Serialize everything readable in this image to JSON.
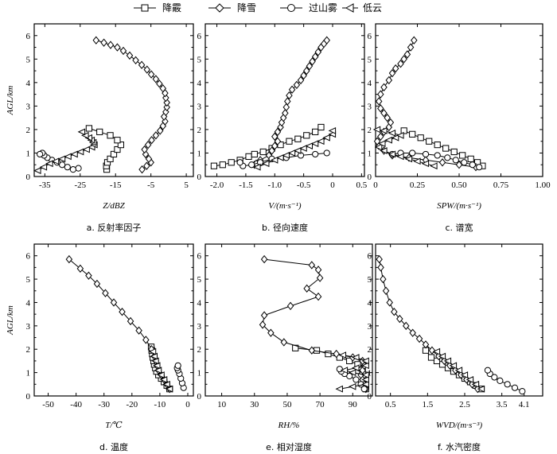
{
  "legend": [
    {
      "label": "降霰",
      "marker": "square"
    },
    {
      "label": "降雪",
      "marker": "diamond"
    },
    {
      "label": "过山雾",
      "marker": "circle"
    },
    {
      "label": "低云",
      "marker": "triangle-left"
    }
  ],
  "shared_ylabel": "AGL/km",
  "chart_data": [
    {
      "id": "a",
      "type": "line",
      "caption": "a.  反射率因子",
      "xlabel": "Z/dBZ",
      "ylabel": "AGL/km",
      "xlim": [
        -38,
        7
      ],
      "ylim": [
        0,
        6.5
      ],
      "xticks": [
        -35,
        -25,
        -15,
        -5,
        5
      ],
      "xtick_labels": [
        "-35",
        "-25",
        "-15",
        "-5",
        "5"
      ],
      "yticks": [
        0,
        1,
        2,
        3,
        4,
        5,
        6
      ],
      "series": [
        {
          "name": "降霰",
          "marker": "square",
          "x": [
            -17.5,
            -17.6,
            -17.3,
            -16.5,
            -15.5,
            -14.5,
            -13.5,
            -14.5,
            -16.5,
            -19.5,
            -22.5
          ],
          "y": [
            0.3,
            0.45,
            0.6,
            0.75,
            0.95,
            1.15,
            1.35,
            1.55,
            1.75,
            1.9,
            2.05
          ]
        },
        {
          "name": "降雪",
          "marker": "diamond",
          "x": [
            -7.5,
            -6.2,
            -5.0,
            -5.6,
            -6.5,
            -6.8,
            -5.8,
            -4.8,
            -3.6,
            -2.4,
            -1.6,
            -1.0,
            -1.3,
            -0.8,
            -0.5,
            -0.5,
            -0.8,
            -1.0,
            -1.6,
            -2.6,
            -3.6,
            -4.9,
            -6.1,
            -7.6,
            -9.3,
            -11.0,
            -12.8,
            -14.5,
            -16.4,
            -18.3,
            -20.5
          ],
          "y": [
            0.3,
            0.45,
            0.6,
            0.75,
            0.95,
            1.15,
            1.35,
            1.55,
            1.75,
            1.95,
            2.15,
            2.35,
            2.55,
            2.75,
            2.95,
            3.15,
            3.35,
            3.55,
            3.75,
            3.95,
            4.15,
            4.35,
            4.55,
            4.75,
            4.95,
            5.15,
            5.35,
            5.5,
            5.6,
            5.7,
            5.8
          ]
        },
        {
          "name": "过山雾",
          "marker": "circle",
          "x": [
            -25.5,
            -27.0,
            -28.6,
            -30.1,
            -31.5,
            -33.0,
            -34.3,
            -35.2,
            -35.7,
            -36.4
          ],
          "y": [
            0.35,
            0.3,
            0.4,
            0.5,
            0.6,
            0.7,
            0.8,
            0.9,
            1.0,
            0.95
          ]
        },
        {
          "name": "低云",
          "marker": "triangle-left",
          "x": [
            -37.0,
            -35.3,
            -33.6,
            -31.9,
            -30.1,
            -28.4,
            -26.6,
            -24.9,
            -23.2,
            -21.7,
            -21.0,
            -21.3,
            -21.8,
            -22.5,
            -23.5,
            -24.5
          ],
          "y": [
            0.25,
            0.4,
            0.55,
            0.65,
            0.75,
            0.85,
            0.95,
            1.05,
            1.15,
            1.25,
            1.35,
            1.45,
            1.55,
            1.65,
            1.75,
            1.9
          ]
        }
      ]
    },
    {
      "id": "b",
      "type": "line",
      "caption": "b.  径向速度",
      "xlabel": "V/(m·s⁻¹)",
      "ylabel": "AGL/km",
      "xlim": [
        -2.2,
        0.55
      ],
      "ylim": [
        0,
        6.5
      ],
      "xticks": [
        -2.0,
        -1.5,
        -1.0,
        -0.5,
        0.0,
        0.5
      ],
      "xtick_labels": [
        "-2.0",
        "-1.5",
        "-1.0",
        "-0.5",
        "0",
        "0.5"
      ],
      "yticks": [
        0,
        1,
        2,
        3,
        4,
        5,
        6
      ],
      "series": [
        {
          "name": "降霰",
          "marker": "square",
          "x": [
            -2.05,
            -1.9,
            -1.75,
            -1.6,
            -1.45,
            -1.35,
            -1.2,
            -1.05,
            -0.9,
            -0.75,
            -0.6,
            -0.45,
            -0.3,
            -0.2
          ],
          "y": [
            0.45,
            0.5,
            0.6,
            0.7,
            0.85,
            0.95,
            1.05,
            1.2,
            1.35,
            1.5,
            1.6,
            1.75,
            1.9,
            2.1
          ]
        },
        {
          "name": "降雪",
          "marker": "diamond",
          "x": [
            -1.35,
            -1.32,
            -1.25,
            -1.1,
            -1.05,
            -1.0,
            -0.95,
            -1.0,
            -0.95,
            -0.9,
            -0.88,
            -0.85,
            -0.82,
            -0.8,
            -0.78,
            -0.75,
            -0.7,
            -0.62,
            -0.55,
            -0.5,
            -0.45,
            -0.4,
            -0.35,
            -0.3,
            -0.25,
            -0.2,
            -0.15,
            -0.1
          ],
          "y": [
            0.5,
            0.55,
            0.7,
            0.9,
            1.1,
            1.3,
            1.5,
            1.7,
            1.9,
            2.1,
            2.3,
            2.5,
            2.7,
            2.95,
            3.2,
            3.45,
            3.7,
            3.9,
            4.1,
            4.3,
            4.5,
            4.7,
            4.9,
            5.1,
            5.3,
            5.5,
            5.65,
            5.8
          ]
        },
        {
          "name": "过山雾",
          "marker": "circle",
          "x": [
            -0.1,
            -0.3,
            -0.55,
            -0.8,
            -1.05,
            -1.25,
            -1.4,
            -1.55,
            -1.6
          ],
          "y": [
            1.0,
            0.95,
            0.9,
            0.8,
            0.75,
            0.6,
            0.5,
            0.45,
            0.6
          ]
        },
        {
          "name": "低云",
          "marker": "triangle-left",
          "x": [
            -1.3,
            -1.15,
            -1.0,
            -0.9,
            -0.8,
            -0.7,
            -0.6,
            -0.5,
            -0.4,
            -0.3,
            -0.2,
            -0.1,
            0.0,
            0.0
          ],
          "y": [
            0.4,
            0.55,
            0.7,
            0.8,
            0.9,
            1.0,
            1.1,
            1.2,
            1.3,
            1.4,
            1.5,
            1.65,
            1.8,
            1.95
          ]
        }
      ]
    },
    {
      "id": "c",
      "type": "line",
      "caption": "c.  谱宽",
      "xlabel": "SPW/(m·s⁻¹)",
      "ylabel": "AGL/km",
      "xlim": [
        0,
        1.0
      ],
      "ylim": [
        0,
        6.5
      ],
      "xticks": [
        0,
        0.25,
        0.5,
        0.75,
        1.0
      ],
      "xtick_labels": [
        "0",
        "0.25",
        "0.50",
        "0.75",
        "1.00"
      ],
      "yticks": [
        0,
        1,
        2,
        3,
        4,
        5,
        6
      ],
      "series": [
        {
          "name": "降霰",
          "marker": "square",
          "x": [
            0.64,
            0.61,
            0.57,
            0.52,
            0.47,
            0.42,
            0.37,
            0.32,
            0.27,
            0.22,
            0.17
          ],
          "y": [
            0.45,
            0.6,
            0.75,
            0.9,
            1.05,
            1.2,
            1.35,
            1.5,
            1.65,
            1.8,
            1.95
          ]
        },
        {
          "name": "降雪",
          "marker": "diamond",
          "x": [
            0.6,
            0.5,
            0.4,
            0.3,
            0.2,
            0.1,
            0.05,
            0.02,
            0.01,
            0.03,
            0.05,
            0.08,
            0.09,
            0.07,
            0.05,
            0.03,
            0.02,
            0.03,
            0.05,
            0.08,
            0.1,
            0.12,
            0.15,
            0.17,
            0.19,
            0.21,
            0.23
          ],
          "y": [
            0.4,
            0.5,
            0.6,
            0.7,
            0.8,
            0.9,
            1.1,
            1.3,
            1.5,
            1.7,
            1.9,
            2.1,
            2.3,
            2.5,
            2.7,
            2.9,
            3.2,
            3.5,
            3.8,
            4.1,
            4.4,
            4.6,
            4.8,
            5.0,
            5.2,
            5.5,
            5.8
          ]
        },
        {
          "name": "过山雾",
          "marker": "circle",
          "x": [
            0.62,
            0.58,
            0.53,
            0.48,
            0.43,
            0.37,
            0.3,
            0.22,
            0.15,
            0.1
          ],
          "y": [
            0.4,
            0.5,
            0.6,
            0.7,
            0.8,
            0.9,
            0.95,
            1.0,
            1.0,
            0.95
          ]
        },
        {
          "name": "低云",
          "marker": "triangle-left",
          "x": [
            0.35,
            0.3,
            0.25,
            0.2,
            0.15,
            0.1,
            0.05,
            0.02,
            0.04,
            0.08,
            0.12,
            0.15,
            0.1,
            0.05,
            0.01
          ],
          "y": [
            0.45,
            0.55,
            0.65,
            0.75,
            0.85,
            0.95,
            1.1,
            1.25,
            1.4,
            1.55,
            1.65,
            1.75,
            1.85,
            1.95,
            2.0
          ]
        }
      ]
    },
    {
      "id": "d",
      "type": "line",
      "caption": "d.  温度",
      "xlabel": "T/℃",
      "ylabel": "AGL/km",
      "xlim": [
        -55,
        2
      ],
      "ylim": [
        0,
        6.5
      ],
      "xticks": [
        -50,
        -40,
        -30,
        -20,
        -10,
        0
      ],
      "xtick_labels": [
        "-50",
        "-40",
        "-30",
        "-20",
        "-10",
        "0"
      ],
      "yticks": [
        0,
        1,
        2,
        3,
        4,
        5,
        6
      ],
      "series": [
        {
          "name": "降霰",
          "marker": "square",
          "x": [
            -6.5,
            -7.5,
            -8.5,
            -9.5,
            -10.5,
            -11.2,
            -11.6,
            -12.0,
            -12.2,
            -12.5,
            -12.7,
            -12.9,
            -13.1
          ],
          "y": [
            0.3,
            0.45,
            0.6,
            0.75,
            0.9,
            1.05,
            1.2,
            1.35,
            1.5,
            1.65,
            1.8,
            1.95,
            2.1
          ]
        },
        {
          "name": "降雪",
          "marker": "diamond",
          "x": [
            -6.5,
            -7.5,
            -8.5,
            -9.5,
            -10.5,
            -11.0,
            -11.5,
            -12.0,
            -13.0,
            -15.0,
            -17.5,
            -20.5,
            -23.5,
            -26.5,
            -29.5,
            -32.5,
            -35.5,
            -38.5,
            -42.5
          ],
          "y": [
            0.3,
            0.5,
            0.7,
            0.9,
            1.1,
            1.3,
            1.5,
            1.7,
            2.0,
            2.4,
            2.8,
            3.2,
            3.6,
            4.0,
            4.4,
            4.8,
            5.15,
            5.45,
            5.85
          ]
        },
        {
          "name": "过山雾",
          "marker": "circle",
          "x": [
            -1.5,
            -2.0,
            -2.5,
            -3.0,
            -3.5,
            -3.8,
            -3.5
          ],
          "y": [
            0.35,
            0.55,
            0.75,
            0.95,
            1.1,
            1.2,
            1.3
          ]
        },
        {
          "name": "低云",
          "marker": "triangle-left",
          "x": [
            -6.5,
            -7.5,
            -8.5,
            -9.5,
            -10.5,
            -11.0,
            -11.5,
            -12.0,
            -12.5
          ],
          "y": [
            0.3,
            0.5,
            0.7,
            0.9,
            1.1,
            1.3,
            1.5,
            1.7,
            1.9
          ]
        }
      ]
    },
    {
      "id": "e",
      "type": "line",
      "caption": "e.  相对湿度",
      "xlabel": "RH/%",
      "ylabel": "AGL/km",
      "xlim": [
        0,
        102
      ],
      "ylim": [
        0,
        6.5
      ],
      "xticks": [
        10,
        30,
        50,
        70,
        90
      ],
      "xtick_labels": [
        "10",
        "30",
        "50",
        "70",
        "90"
      ],
      "yticks": [
        0,
        1,
        2,
        3,
        4,
        5,
        6
      ],
      "series": [
        {
          "name": "降霰",
          "marker": "square",
          "x": [
            98,
            98,
            98,
            97,
            97,
            96,
            95,
            93,
            88,
            82,
            75,
            68,
            55
          ],
          "y": [
            0.3,
            0.45,
            0.6,
            0.75,
            0.9,
            1.05,
            1.2,
            1.35,
            1.5,
            1.65,
            1.8,
            1.95,
            2.05
          ]
        },
        {
          "name": "降雪",
          "marker": "diamond",
          "x": [
            98,
            97,
            96,
            95,
            96,
            97,
            96,
            90,
            80,
            65,
            48,
            40,
            35,
            36,
            52,
            69,
            62,
            70,
            69,
            65,
            36
          ],
          "y": [
            0.3,
            0.5,
            0.7,
            0.9,
            1.1,
            1.3,
            1.5,
            1.65,
            1.8,
            1.95,
            2.3,
            2.7,
            3.05,
            3.45,
            3.85,
            4.25,
            4.6,
            5.05,
            5.4,
            5.6,
            5.85
          ]
        },
        {
          "name": "过山雾",
          "marker": "circle",
          "x": [
            97,
            95,
            92,
            88,
            85,
            83,
            82
          ],
          "y": [
            0.3,
            0.5,
            0.7,
            0.85,
            0.95,
            1.05,
            1.15
          ]
        },
        {
          "name": "低云",
          "marker": "triangle-left",
          "x": [
            82,
            90,
            98,
            98,
            98,
            90,
            85,
            92,
            98,
            98,
            92,
            84
          ],
          "y": [
            0.3,
            0.4,
            0.5,
            0.7,
            0.9,
            1.0,
            1.1,
            1.2,
            1.3,
            1.5,
            1.65,
            1.75
          ]
        }
      ]
    },
    {
      "id": "f",
      "type": "line",
      "caption": "f.  水汽密度",
      "xlabel": "WVD/(m·s⁻³)",
      "ylabel": "AGL/km",
      "xlim": [
        0.1,
        4.6
      ],
      "ylim": [
        0,
        6.5
      ],
      "xticks": [
        0.5,
        1.5,
        2.5,
        3.5
      ],
      "xtick_labels": [
        "0.5",
        "1.5",
        "2.5",
        "3.5"
      ],
      "extra_xticks": [
        4.1
      ],
      "extra_xtick_labels": [
        "4.1"
      ],
      "yticks": [
        0,
        1,
        2,
        3,
        4,
        5,
        6
      ],
      "series": [
        {
          "name": "降霰",
          "marker": "square",
          "x": [
            2.95,
            2.8,
            2.65,
            2.5,
            2.35,
            2.2,
            2.05,
            1.9,
            1.75,
            1.6,
            1.45
          ],
          "y": [
            0.3,
            0.45,
            0.6,
            0.75,
            0.9,
            1.05,
            1.2,
            1.35,
            1.5,
            1.65,
            1.95
          ]
        },
        {
          "name": "降雪",
          "marker": "diamond",
          "x": [
            2.85,
            2.7,
            2.55,
            2.4,
            2.25,
            2.1,
            1.95,
            1.8,
            1.62,
            1.45,
            1.28,
            1.1,
            0.92,
            0.75,
            0.6,
            0.48,
            0.38,
            0.3,
            0.24,
            0.2
          ],
          "y": [
            0.3,
            0.5,
            0.7,
            0.9,
            1.1,
            1.3,
            1.5,
            1.7,
            1.95,
            2.2,
            2.45,
            2.7,
            3.0,
            3.3,
            3.6,
            4.0,
            4.5,
            5.0,
            5.5,
            5.85
          ]
        },
        {
          "name": "过山雾",
          "marker": "circle",
          "x": [
            4.05,
            3.85,
            3.65,
            3.45,
            3.3,
            3.18,
            3.12
          ],
          "y": [
            0.2,
            0.35,
            0.5,
            0.65,
            0.8,
            0.95,
            1.1
          ]
        },
        {
          "name": "低云",
          "marker": "triangle-left",
          "x": [
            2.95,
            2.8,
            2.65,
            2.5,
            2.35,
            2.2,
            2.05,
            1.9,
            1.75
          ],
          "y": [
            0.3,
            0.5,
            0.7,
            0.9,
            1.1,
            1.3,
            1.5,
            1.7,
            1.9
          ]
        }
      ]
    }
  ]
}
